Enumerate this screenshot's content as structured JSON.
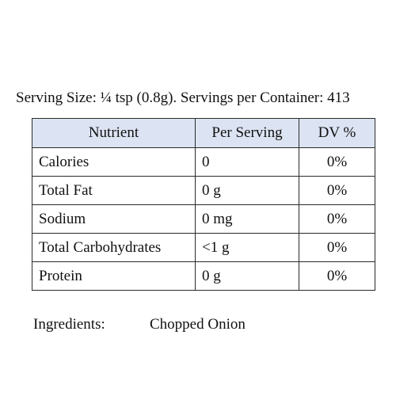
{
  "serving_line": "Serving Size: ¼ tsp (0.8g). Servings per Container: 413",
  "table": {
    "headers": [
      "Nutrient",
      "Per Serving",
      "DV %"
    ],
    "rows": [
      [
        "Calories",
        "0",
        "0%"
      ],
      [
        "Total Fat",
        "0 g",
        "0%"
      ],
      [
        "Sodium",
        "0 mg",
        "0%"
      ],
      [
        "Total Carbohydrates",
        "<1 g",
        "0%"
      ],
      [
        "Protein",
        "0 g",
        "0%"
      ]
    ]
  },
  "ingredients": {
    "label": "Ingredients:",
    "value": "Chopped Onion"
  },
  "colors": {
    "header_background": "#dce3f2",
    "border": "#2a2a2a"
  }
}
